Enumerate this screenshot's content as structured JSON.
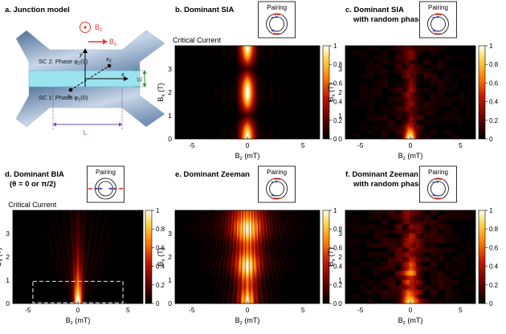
{
  "figure": {
    "panels": [
      {
        "id": "a",
        "letter": "a.",
        "title": "Junction model",
        "labels": {
          "bz": "B",
          "bz_sub": "z",
          "bx": "B",
          "bx_sub": "x",
          "sc2": "SC 2: Phase φ",
          "sc2_sub": "2",
          "sc2_end": "(0)",
          "sc1": "SC 1: Phase φ",
          "sc1_sub": "1",
          "sc1_end": "(0)",
          "y": "y",
          "x": "x",
          "x1": "x",
          "x1_sub": "1",
          "x2": "x",
          "x2_sub": "2",
          "w": "W",
          "l": "L"
        }
      },
      {
        "id": "b",
        "letter": "b.",
        "title": "Dominant SIA",
        "subtitle": "",
        "inset": "Pairing",
        "header": "Critical Current",
        "pattern": "sia"
      },
      {
        "id": "c",
        "letter": "c.",
        "title": "Dominant SIA",
        "subtitle": "with random phase",
        "inset": "Pairing",
        "header": "",
        "pattern": "sia-random"
      },
      {
        "id": "d",
        "letter": "d.",
        "title": "Dominant BIA",
        "subtitle": "(θ = 0 or π/2)",
        "inset": "Pairing",
        "header": "Critical Current",
        "pattern": "bia"
      },
      {
        "id": "e",
        "letter": "e.",
        "title": "Dominant Zeeman",
        "subtitle": "",
        "inset": "Pairing",
        "header": "",
        "pattern": "zeeman"
      },
      {
        "id": "f",
        "letter": "f.",
        "title": "Dominant Zeeman",
        "subtitle": "with random phase",
        "inset": "Pairing",
        "header": "",
        "pattern": "zeeman-random"
      }
    ],
    "axes": {
      "xlabel": "B",
      "xlabel_sub": "z",
      "xlabel_unit": " (mT)",
      "ylabel": "B",
      "ylabel_sub": "x",
      "ylabel_unit": " (T)",
      "xticks": [
        "-5",
        "0",
        "5"
      ],
      "yticks": [
        "0",
        "1",
        "2",
        "3"
      ],
      "colorbar_ticks": [
        "0",
        "0.2",
        "0.4",
        "0.6",
        "0.8",
        "1"
      ],
      "xlim": [
        -6.5,
        6.5
      ],
      "ylim": [
        0,
        4
      ]
    },
    "colors": {
      "sc": "#7f9bbf",
      "junction": "#9be3ef",
      "arrow_red": "#e33b2b",
      "arrow_blue": "#3a45a8",
      "green": "#2e8b3a",
      "purple": "#7a4aa8",
      "colormap": [
        "#000000",
        "#5a0000",
        "#c01a00",
        "#ff7a00",
        "#ffd24a",
        "#ffffff"
      ]
    }
  }
}
